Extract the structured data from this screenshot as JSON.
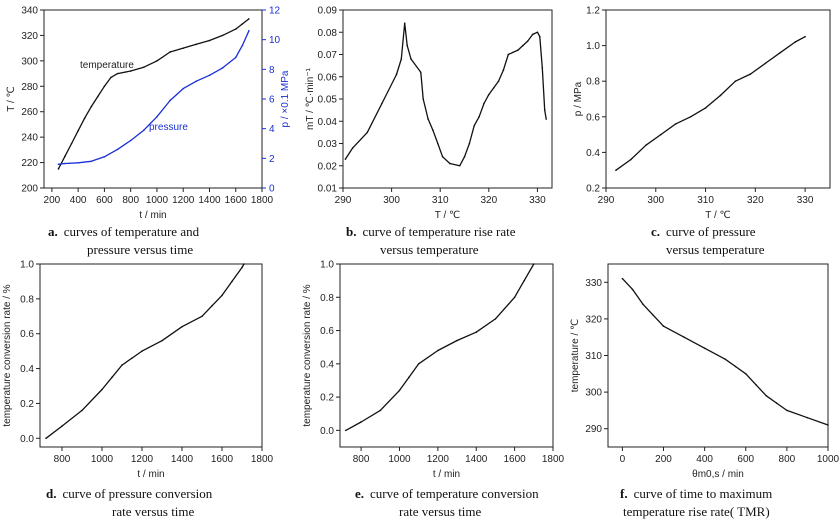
{
  "captions": [
    {
      "letter": "a.",
      "lines": [
        "curves of temperature and",
        "pressure versus time"
      ]
    },
    {
      "letter": "b.",
      "lines": [
        "curve of temperature rise rate",
        "versus temperature"
      ]
    },
    {
      "letter": "c.",
      "lines": [
        "curve of pressure",
        "versus temperature"
      ]
    },
    {
      "letter": "d.",
      "lines": [
        "curve of pressure conversion",
        "rate versus time"
      ]
    },
    {
      "letter": "e.",
      "lines": [
        "curve of temperature conversion",
        "rate versus time"
      ]
    },
    {
      "letter": "f.",
      "lines": [
        "curve of time to maximum",
        "temperature rise rate( TMR)"
      ]
    }
  ],
  "colors": {
    "black_series": "#111111",
    "blue_series": "#1a2fd6",
    "axis": "#222222"
  },
  "chart_data": [
    {
      "type": "line",
      "xlabel": "t / min",
      "ylabel": "T / ℃",
      "y2label": "p / ×0.1 MPa",
      "xlim": [
        140,
        1800
      ],
      "ylim": [
        200,
        340
      ],
      "y2lim": [
        0,
        12
      ],
      "xticks": [
        200,
        400,
        600,
        800,
        1000,
        1200,
        1400,
        1600,
        1800
      ],
      "yticks": [
        200,
        220,
        240,
        260,
        280,
        300,
        320,
        340
      ],
      "y2ticks": [
        0,
        2,
        4,
        6,
        8,
        10,
        12
      ],
      "series": [
        {
          "name": "temperature",
          "axis": "left",
          "color": "#111111",
          "x": [
            250,
            300,
            350,
            400,
            450,
            500,
            550,
            600,
            650,
            700,
            800,
            900,
            1000,
            1100,
            1200,
            1300,
            1400,
            1500,
            1600,
            1650,
            1700
          ],
          "y": [
            215,
            225,
            235,
            245,
            255,
            264,
            272,
            280,
            287,
            290,
            292,
            295,
            300,
            307,
            310,
            313,
            316,
            320,
            325,
            329,
            333
          ]
        },
        {
          "name": "pressure",
          "axis": "right",
          "color": "#1a2fd6",
          "x": [
            250,
            300,
            400,
            500,
            600,
            700,
            800,
            900,
            1000,
            1100,
            1200,
            1300,
            1400,
            1500,
            1600,
            1650,
            1700
          ],
          "y": [
            1.6,
            1.65,
            1.7,
            1.8,
            2.1,
            2.6,
            3.2,
            3.9,
            4.8,
            5.9,
            6.7,
            7.2,
            7.6,
            8.1,
            8.8,
            9.6,
            10.6
          ]
        }
      ]
    },
    {
      "type": "line",
      "xlabel": "T / ℃",
      "ylabel": "mT / ℃·min⁻¹",
      "xlim": [
        290,
        333
      ],
      "ylim": [
        0.01,
        0.09
      ],
      "xticks": [
        290,
        300,
        310,
        320,
        330
      ],
      "yticks": [
        0.01,
        0.02,
        0.03,
        0.04,
        0.05,
        0.06,
        0.07,
        0.08,
        0.09
      ],
      "series": [
        {
          "name": "",
          "color": "#111111",
          "x": [
            290.5,
            292,
            295,
            298,
            301,
            302,
            302.7,
            303.2,
            304,
            306,
            306.5,
            307.5,
            308.5,
            309.5,
            310.5,
            312,
            314,
            315,
            316,
            317,
            318,
            319,
            320,
            321,
            322,
            323,
            324,
            325,
            326,
            327,
            328,
            329,
            330,
            330.5,
            331,
            331.5,
            331.8
          ],
          "y": [
            0.023,
            0.028,
            0.035,
            0.048,
            0.061,
            0.068,
            0.084,
            0.074,
            0.068,
            0.062,
            0.05,
            0.041,
            0.036,
            0.03,
            0.024,
            0.021,
            0.02,
            0.024,
            0.03,
            0.038,
            0.042,
            0.048,
            0.052,
            0.055,
            0.058,
            0.063,
            0.07,
            0.071,
            0.072,
            0.074,
            0.076,
            0.079,
            0.08,
            0.078,
            0.064,
            0.045,
            0.041
          ]
        }
      ]
    },
    {
      "type": "line",
      "xlabel": "T / ℃",
      "ylabel": "p / MPa",
      "xlim": [
        290,
        335
      ],
      "ylim": [
        0.2,
        1.2
      ],
      "xticks": [
        290,
        300,
        310,
        320,
        330
      ],
      "yticks": [
        0.2,
        0.4,
        0.6,
        0.8,
        1.0,
        1.2
      ],
      "series": [
        {
          "name": "",
          "color": "#111111",
          "x": [
            292,
            295,
            298,
            301,
            304,
            307,
            310,
            313,
            316,
            319,
            322,
            325,
            328,
            330
          ],
          "y": [
            0.3,
            0.36,
            0.44,
            0.5,
            0.56,
            0.6,
            0.65,
            0.72,
            0.8,
            0.84,
            0.9,
            0.96,
            1.02,
            1.05
          ]
        }
      ]
    },
    {
      "type": "line",
      "xlabel": "t / min",
      "ylabel": "temperature conversion rate / %",
      "xlim": [
        690,
        1800
      ],
      "ylim": [
        -0.05,
        1.0
      ],
      "xticks": [
        800,
        1000,
        1200,
        1400,
        1600,
        1800
      ],
      "yticks": [
        0.0,
        0.2,
        0.4,
        0.6,
        0.8,
        1.0
      ],
      "series": [
        {
          "name": "",
          "color": "#111111",
          "x": [
            720,
            800,
            900,
            1000,
            1050,
            1100,
            1150,
            1200,
            1300,
            1400,
            1500,
            1550,
            1600,
            1650,
            1700,
            1710
          ],
          "y": [
            0.0,
            0.07,
            0.16,
            0.28,
            0.35,
            0.42,
            0.46,
            0.5,
            0.56,
            0.64,
            0.7,
            0.76,
            0.82,
            0.9,
            0.98,
            1.0
          ]
        }
      ]
    },
    {
      "type": "line",
      "xlabel": "t / min",
      "ylabel": "temperature conversion rate / %",
      "xlim": [
        690,
        1800
      ],
      "ylim": [
        -0.1,
        1.0
      ],
      "xticks": [
        800,
        1000,
        1200,
        1400,
        1600,
        1800
      ],
      "yticks": [
        0.0,
        0.2,
        0.4,
        0.6,
        0.8,
        1.0
      ],
      "series": [
        {
          "name": "",
          "color": "#111111",
          "x": [
            720,
            800,
            900,
            1000,
            1050,
            1100,
            1200,
            1300,
            1400,
            1500,
            1600,
            1650,
            1700
          ],
          "y": [
            0.0,
            0.05,
            0.12,
            0.24,
            0.32,
            0.4,
            0.48,
            0.54,
            0.59,
            0.67,
            0.8,
            0.9,
            1.0
          ]
        }
      ]
    },
    {
      "type": "line",
      "xlabel": "θm0,s / min",
      "ylabel": "temperature / ℃",
      "xlim": [
        -70,
        1000
      ],
      "ylim": [
        285,
        335
      ],
      "xticks": [
        0,
        200,
        400,
        600,
        800,
        1000
      ],
      "yticks": [
        290,
        300,
        310,
        320,
        330
      ],
      "series": [
        {
          "name": "",
          "color": "#111111",
          "x": [
            0,
            50,
            100,
            150,
            200,
            300,
            400,
            500,
            550,
            600,
            650,
            700,
            750,
            800,
            900,
            1000
          ],
          "y": [
            331,
            328,
            324,
            321,
            318,
            315,
            312,
            309,
            307,
            305,
            302,
            299,
            297,
            295,
            293,
            291
          ]
        }
      ]
    }
  ],
  "labels": {
    "temperature": "temperature",
    "pressure": "pressure"
  }
}
